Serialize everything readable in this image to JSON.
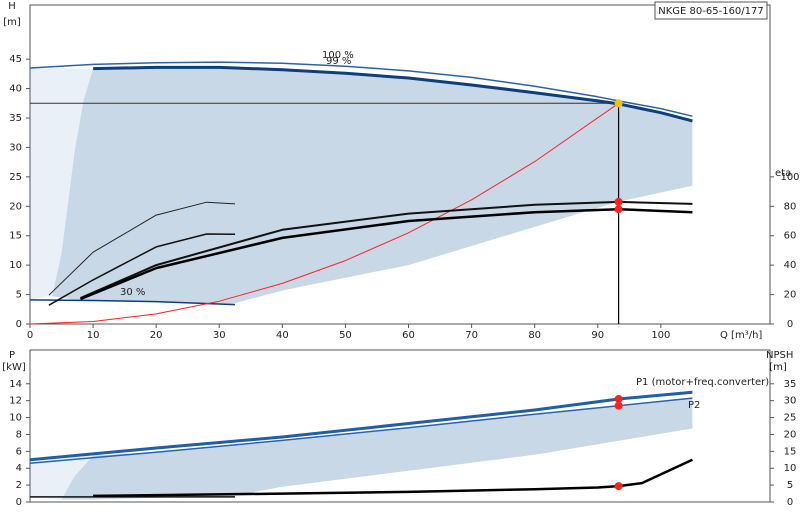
{
  "chart_data": [
    {
      "type": "line",
      "title": "NKGE 80-65-160/177",
      "ylabel": "H",
      "yunit": "[m]",
      "y2label": "eta",
      "xlabel": "Q [m³/h]",
      "xlim": [
        0,
        117.3
      ],
      "ylim": [
        0,
        54.2
      ],
      "y2lim": [
        0,
        216.8
      ],
      "xticks": [
        0,
        10,
        20,
        30,
        40,
        50,
        60,
        70,
        80,
        90,
        100
      ],
      "yticks": [
        0,
        5,
        10,
        15,
        20,
        25,
        30,
        35,
        40,
        45
      ],
      "y2ticks": [
        0,
        20,
        40,
        60,
        80,
        100
      ],
      "series": [
        {
          "kind": "area",
          "color": "#e9f0f8",
          "x": [
            0,
            10,
            8.5,
            7.1,
            5,
            3.5,
            0
          ],
          "values": [
            43.5,
            43.4,
            38,
            29.5,
            12,
            4.7,
            4.2
          ]
        },
        {
          "kind": "area",
          "color": "#c9d8e6",
          "x": [
            10,
            20,
            40,
            60,
            80,
            93.3,
            105,
            105,
            93.3,
            80,
            60,
            40,
            32,
            20,
            8,
            3.5,
            5,
            7.1,
            8.5
          ],
          "values": [
            43.4,
            43.6,
            43.2,
            41.8,
            39.3,
            37.4,
            34.5,
            23.5,
            20.8,
            16.5,
            10,
            5.7,
            3.4,
            3.8,
            4.0,
            4.7,
            12,
            29.5,
            38
          ]
        },
        {
          "kind": "line",
          "name": "100 %",
          "color": "#2a64a8",
          "width": 1.5,
          "x": [
            0,
            10,
            20,
            30,
            40,
            50,
            60,
            70,
            80,
            90,
            93.3,
            100,
            105
          ],
          "values": [
            43.5,
            44.1,
            44.4,
            44.5,
            44.3,
            43.8,
            43.0,
            41.9,
            40.4,
            38.6,
            37.9,
            36.6,
            35.3
          ]
        },
        {
          "kind": "line",
          "name": "99 %",
          "color": "#0e3f7a",
          "width": 3,
          "x": [
            10,
            20,
            30,
            40,
            50,
            60,
            70,
            80,
            90,
            93.3,
            100,
            105
          ],
          "values": [
            43.4,
            43.6,
            43.6,
            43.2,
            42.6,
            41.8,
            40.6,
            39.3,
            37.9,
            37.4,
            35.9,
            34.5
          ]
        },
        {
          "kind": "line",
          "name": "30 %",
          "color": "#0e3f7a",
          "width": 1.5,
          "x": [
            0,
            10,
            20,
            32.5
          ],
          "values": [
            4.1,
            4.0,
            3.8,
            3.3
          ]
        },
        {
          "kind": "line",
          "color": "#ff2020",
          "width": 1,
          "x": [
            0,
            10,
            20,
            30,
            40,
            50,
            60,
            70,
            80,
            93.3
          ],
          "values": [
            0,
            0.43,
            1.72,
            3.88,
            6.89,
            10.77,
            15.5,
            21.1,
            27.6,
            37.5
          ]
        },
        {
          "kind": "line",
          "axis": "y2",
          "color": "#222222",
          "width": 1,
          "x": [
            3,
            10,
            20,
            28,
            32.5
          ],
          "values": [
            19.6,
            48.8,
            74,
            82.8,
            81.6
          ]
        },
        {
          "kind": "line",
          "axis": "y2",
          "color": "#111111",
          "width": 1.5,
          "x": [
            3,
            10,
            20,
            28,
            32.5
          ],
          "values": [
            12.8,
            30,
            52.4,
            61.2,
            61
          ]
        },
        {
          "kind": "line",
          "axis": "y2",
          "color": "#111111",
          "width": 2,
          "x": [
            8,
            20,
            40,
            60,
            80,
            93.3,
            105
          ],
          "values": [
            17.7,
            40,
            64,
            75,
            81,
            83,
            81.6
          ]
        },
        {
          "kind": "line",
          "axis": "y2",
          "color": "#000000",
          "width": 2.5,
          "x": [
            8,
            20,
            40,
            60,
            80,
            93.3,
            105
          ],
          "values": [
            17,
            38,
            58.5,
            70,
            76,
            78,
            76
          ]
        }
      ],
      "points": [
        {
          "x": 93.3,
          "value": 37.5,
          "color": "#f5c400",
          "guide": true
        },
        {
          "x": 93.3,
          "value": 83,
          "axis": "y2",
          "color": "#ff2020"
        },
        {
          "x": 93.3,
          "value": 78,
          "axis": "y2",
          "color": "#ff2020"
        }
      ]
    },
    {
      "type": "line",
      "ylabel": "P",
      "yunit": "[kW]",
      "y2label": "NPSH",
      "y2unit": "[m]",
      "xlim": [
        0,
        117.3
      ],
      "ylim": [
        0,
        18
      ],
      "y2lim": [
        0,
        45
      ],
      "yticks": [
        0,
        2,
        4,
        6,
        8,
        10,
        12,
        14
      ],
      "y2ticks": [
        0,
        5,
        10,
        15,
        20,
        25,
        30,
        35
      ],
      "series": [
        {
          "kind": "area",
          "color": "#e9f0f8",
          "x": [
            0,
            10,
            7,
            5,
            0
          ],
          "values": [
            4.8,
            5.5,
            3,
            0.3,
            0.5
          ]
        },
        {
          "kind": "area",
          "color": "#c9d8e6",
          "x": [
            10,
            20,
            40,
            60,
            80,
            93.3,
            105,
            105,
            80,
            60,
            40,
            32,
            20,
            10,
            5,
            7
          ],
          "values": [
            5.5,
            5.9,
            7.3,
            8.8,
            10.4,
            11.4,
            12.3,
            8.7,
            5.6,
            3.7,
            1.8,
            0.7,
            0.5,
            0.3,
            0.3,
            3
          ]
        },
        {
          "kind": "line",
          "name": "P1 (motor+freq.converter)",
          "color": "#1f5fa8",
          "width": 3,
          "x": [
            0,
            20,
            40,
            60,
            80,
            93.3,
            105
          ],
          "values": [
            5.0,
            6.4,
            7.7,
            9.3,
            10.9,
            12.2,
            13.0
          ]
        },
        {
          "kind": "line",
          "name": "P2",
          "color": "#2a64a8",
          "width": 1.5,
          "x": [
            0,
            20,
            40,
            60,
            80,
            93.3,
            105
          ],
          "values": [
            4.6,
            5.9,
            7.3,
            8.8,
            10.4,
            11.4,
            12.3
          ]
        },
        {
          "kind": "line",
          "color": "#111111",
          "width": 1.5,
          "x": [
            0,
            32.5
          ],
          "values": [
            0.6,
            0.6
          ]
        },
        {
          "kind": "line",
          "axis": "y2",
          "color": "#000000",
          "width": 2.5,
          "x": [
            10,
            40,
            60,
            80,
            90,
            93.3,
            97,
            105
          ],
          "values": [
            1.8,
            2.5,
            3,
            3.8,
            4.3,
            4.7,
            5.6,
            12.5
          ]
        }
      ],
      "points": [
        {
          "x": 93.3,
          "value": 12.2,
          "color": "#ff2020"
        },
        {
          "x": 93.3,
          "value": 11.4,
          "color": "#ff2020"
        },
        {
          "x": 93.3,
          "value": 4.7,
          "axis": "y2",
          "color": "#ff2020"
        }
      ]
    }
  ]
}
